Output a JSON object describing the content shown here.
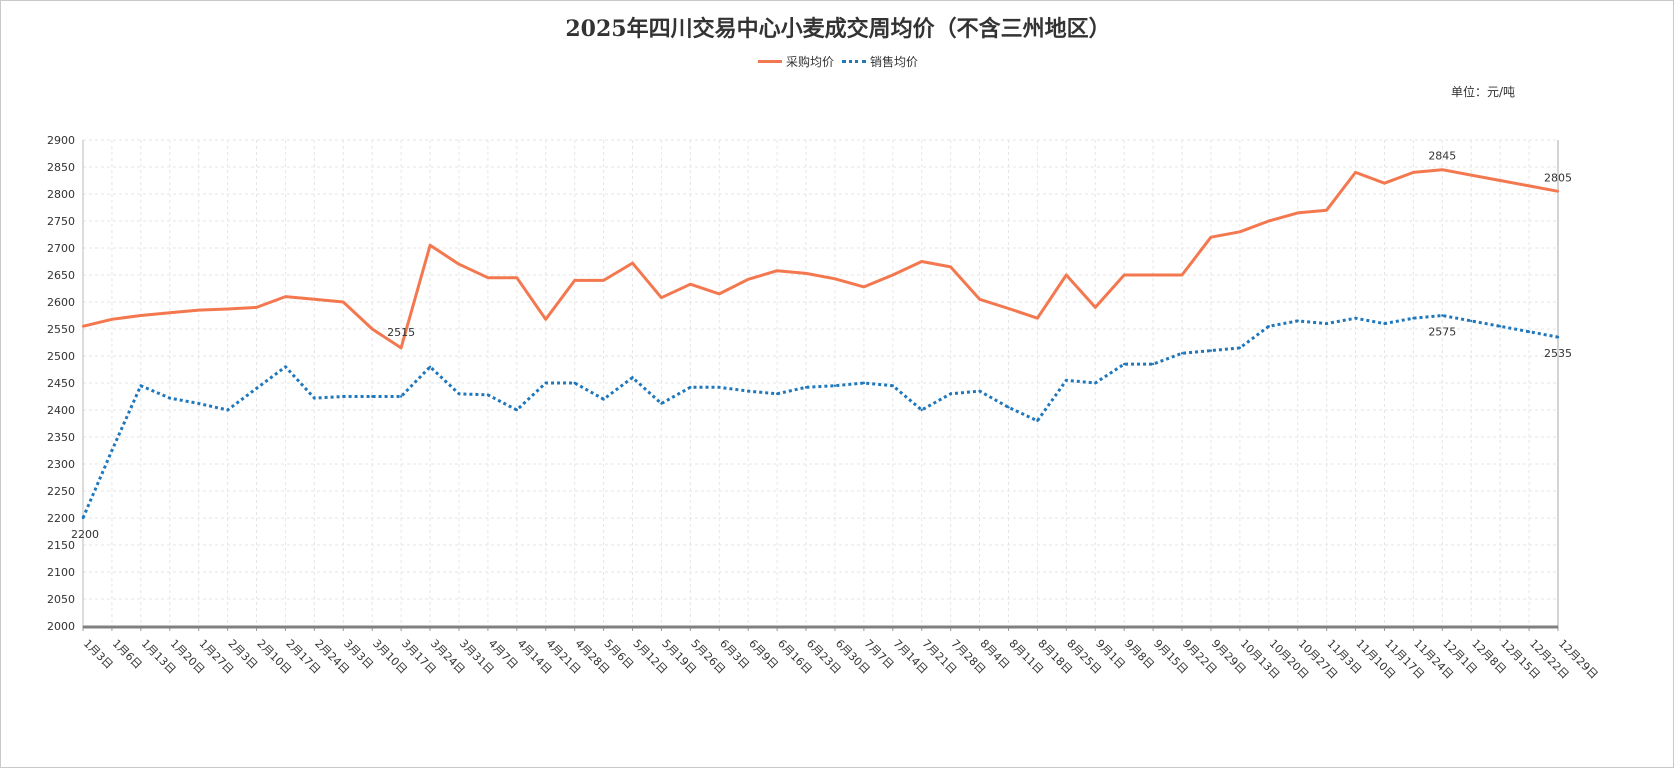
{
  "chart_data": {
    "type": "line",
    "title": "2025年四川交易中心小麦成交周均价（不含三州地区）",
    "unit": "单位：元/吨",
    "legend_position": "top-center",
    "ylim": [
      2000,
      2900
    ],
    "yticks": [
      2000,
      2050,
      2100,
      2150,
      2200,
      2250,
      2300,
      2350,
      2400,
      2450,
      2500,
      2550,
      2600,
      2650,
      2700,
      2750,
      2800,
      2850,
      2900
    ],
    "grid": true,
    "categories": [
      "1月3日",
      "1月6日",
      "1月13日",
      "1月20日",
      "1月27日",
      "2月3日",
      "2月10日",
      "2月17日",
      "2月24日",
      "3月3日",
      "3月10日",
      "3月17日",
      "3月24日",
      "3月31日",
      "4月7日",
      "4月14日",
      "4月21日",
      "4月28日",
      "5月6日",
      "5月12日",
      "5月19日",
      "5月26日",
      "6月3日",
      "6月9日",
      "6月16日",
      "6月23日",
      "6月30日",
      "7月7日",
      "7月14日",
      "7月21日",
      "7月28日",
      "8月4日",
      "8月11日",
      "8月18日",
      "8月25日",
      "9月1日",
      "9月8日",
      "9月15日",
      "9月22日",
      "9月29日",
      "10月13日",
      "10月20日",
      "10月27日",
      "11月3日",
      "11月10日",
      "11月17日",
      "11月24日",
      "12月1日",
      "12月8日",
      "12月15日",
      "12月22日",
      "12月29日"
    ],
    "series": [
      {
        "name": "采购均价",
        "color": "#F4784F",
        "style": "solid",
        "values": [
          2555,
          2568,
          2575,
          2580,
          2585,
          2587,
          2590,
          2610,
          2605,
          2600,
          2550,
          2515,
          2705,
          2670,
          2645,
          2645,
          2568,
          2640,
          2640,
          2672,
          2608,
          2633,
          2615,
          2642,
          2658,
          2653,
          2643,
          2628,
          2650,
          2675,
          2665,
          2605,
          2588,
          2570,
          2650,
          2590,
          2650,
          2650,
          2650,
          2720,
          2730,
          2750,
          2765,
          2770,
          2840,
          2820,
          2840,
          2845,
          2835,
          2825,
          2815,
          2805
        ]
      },
      {
        "name": "销售均价",
        "color": "#1F77BC",
        "style": "dotted",
        "values": [
          2200,
          2325,
          2445,
          2422,
          2412,
          2400,
          2440,
          2480,
          2422,
          2425,
          2425,
          2425,
          2480,
          2430,
          2428,
          2400,
          2450,
          2450,
          2420,
          2460,
          2412,
          2442,
          2442,
          2435,
          2430,
          2442,
          2445,
          2450,
          2445,
          2400,
          2430,
          2435,
          2405,
          2380,
          2455,
          2450,
          2485,
          2485,
          2505,
          2510,
          2515,
          2555,
          2565,
          2560,
          2570,
          2560,
          2570,
          2575,
          2565,
          2555,
          2545,
          2535
        ]
      }
    ],
    "annotations": [
      {
        "series": 0,
        "index": 11,
        "text": "2515"
      },
      {
        "series": 0,
        "index": 47,
        "text": "2845"
      },
      {
        "series": 0,
        "index": 51,
        "text": "2805"
      },
      {
        "series": 1,
        "index": 0,
        "text": "2200"
      },
      {
        "series": 1,
        "index": 47,
        "text": "2575"
      },
      {
        "series": 1,
        "index": 51,
        "text": "2535"
      }
    ]
  }
}
